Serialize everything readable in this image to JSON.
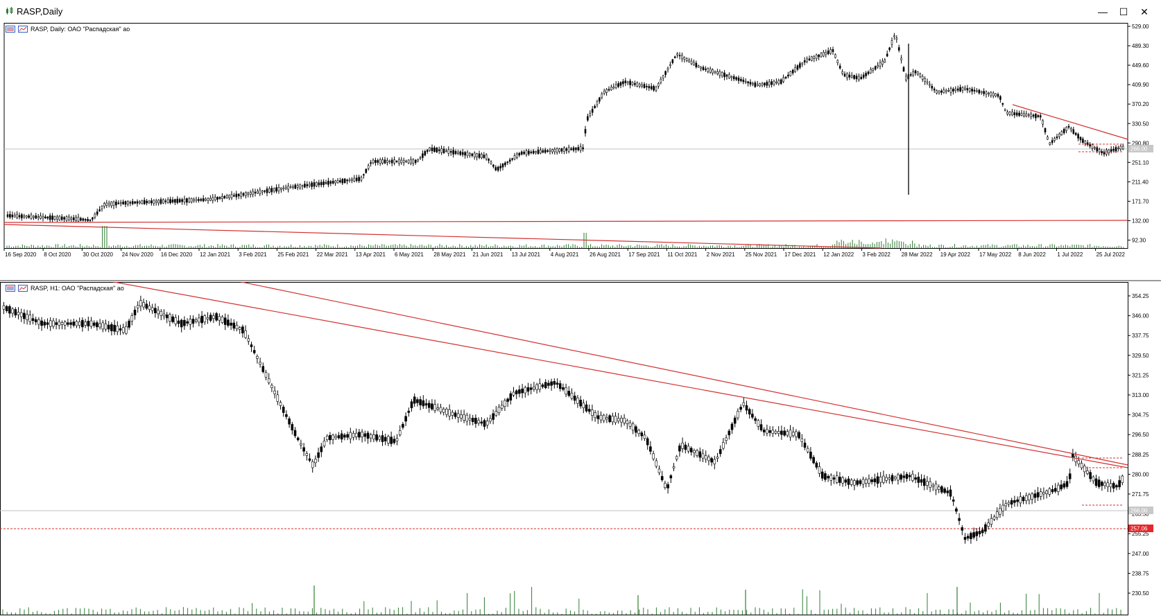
{
  "window": {
    "title": "RASP,Daily",
    "minimize_glyph": "—",
    "maximize_glyph": "☐",
    "close_glyph": "✕"
  },
  "colors": {
    "trendline": "#d32f2f",
    "volume": "#2e7d32",
    "candle": "#000000",
    "level_label_bg": "#e5262a",
    "current_label_bg": "#c8c8c8"
  },
  "daily": {
    "chart_title": "RASP, Daily:  ОАО \"Распадская\" ао",
    "price_ticks": [
      "529.00",
      "489.30",
      "449.60",
      "409.90",
      "370.20",
      "330.50",
      "290.80",
      "251.10",
      "211.40",
      "171.70",
      "132.00",
      "92.30"
    ],
    "date_ticks": [
      "16 Sep 2020",
      "8 Oct 2020",
      "30 Oct 2020",
      "24 Nov 2020",
      "16 Dec 2020",
      "12 Jan 2021",
      "3 Feb 2021",
      "25 Feb 2021",
      "22 Mar 2021",
      "13 Apr 2021",
      "6 May 2021",
      "28 May 2021",
      "21 Jun 2021",
      "13 Jul 2021",
      "4 Aug 2021",
      "26 Aug 2021",
      "17 Sep 2021",
      "11 Oct 2021",
      "2 Nov 2021",
      "25 Nov 2021",
      "17 Dec 2021",
      "12 Jan 2022",
      "3 Feb 2022",
      "28 Mar 2022",
      "19 Apr 2022",
      "17 May 2022",
      "8 Jun 2022",
      "1 Jul 2022",
      "25 Jul 2022"
    ],
    "current_price_label": "266.00"
  },
  "h1": {
    "chart_title": "RASP, H1:  ОАО \"Распадская\" ао",
    "price_ticks": [
      "354.25",
      "346.00",
      "337.75",
      "329.50",
      "321.25",
      "313.00",
      "304.75",
      "296.50",
      "288.25",
      "280.00",
      "271.75",
      "263.50",
      "255.25",
      "247.00",
      "238.75",
      "230.50"
    ],
    "level_label": "257.06",
    "current_price_label": "266.00"
  }
}
